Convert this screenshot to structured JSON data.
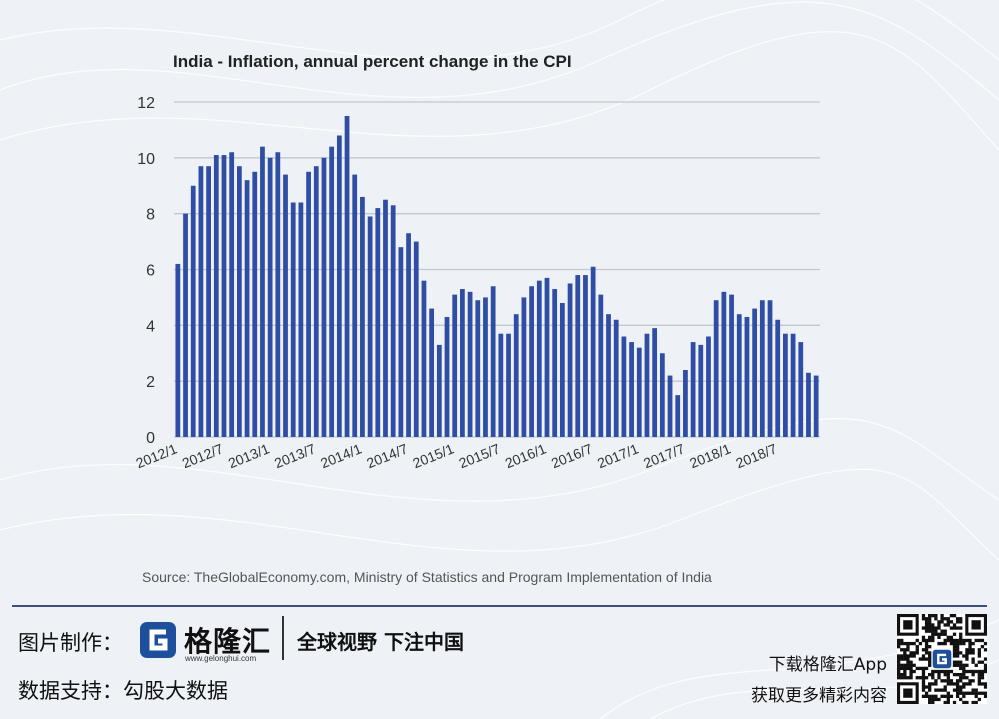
{
  "chart_data": {
    "type": "bar",
    "title": "India - Inflation, annual percent change in the CPI",
    "xlabel": "",
    "ylabel": "",
    "ylim": [
      0,
      12
    ],
    "yticks": [
      0,
      2,
      4,
      6,
      8,
      10,
      12
    ],
    "grid": true,
    "x_tick_labels": [
      "2012/1",
      "2012/7",
      "2013/1",
      "2013/7",
      "2014/1",
      "2014/7",
      "2015/1",
      "2015/7",
      "2016/1",
      "2016/7",
      "2017/1",
      "2017/7",
      "2018/1",
      "2018/7"
    ],
    "x_tick_every": 6,
    "values": [
      6.2,
      8.0,
      9.0,
      9.7,
      9.7,
      10.1,
      10.1,
      10.2,
      9.7,
      9.2,
      9.5,
      10.4,
      10.0,
      10.2,
      9.4,
      8.4,
      8.4,
      9.5,
      9.7,
      10.0,
      10.4,
      10.8,
      11.5,
      9.4,
      8.6,
      7.9,
      8.2,
      8.5,
      8.3,
      6.8,
      7.3,
      7.0,
      5.6,
      4.6,
      3.3,
      4.3,
      5.1,
      5.3,
      5.2,
      4.9,
      5.0,
      5.4,
      3.7,
      3.7,
      4.4,
      5.0,
      5.4,
      5.6,
      5.7,
      5.3,
      4.8,
      5.5,
      5.8,
      5.8,
      6.1,
      5.1,
      4.4,
      4.2,
      3.6,
      3.4,
      3.2,
      3.7,
      3.9,
      3.0,
      2.2,
      1.5,
      2.4,
      3.4,
      3.3,
      3.6,
      4.9,
      5.2,
      5.1,
      4.4,
      4.3,
      4.6,
      4.9,
      4.9,
      4.2,
      3.7,
      3.7,
      3.4,
      2.3,
      2.2
    ],
    "bar_color": "#2f4ea3",
    "grid_color": "#c3c7ce"
  },
  "source": "Source: TheGlobalEconomy.com, Ministry of Statistics and Program Implementation of India",
  "footer": {
    "made_by_label": "图片制作：",
    "data_support_label": "数据支持：",
    "data_support_value": "勾股大数据",
    "logo_cn": "格隆汇",
    "logo_url": "www.gelonghui.com",
    "slogan": "全球视野 下注中国",
    "app_line1": "下载格隆汇App",
    "app_line2": "获取更多精彩内容",
    "brand_color": "#1e4f9c"
  }
}
